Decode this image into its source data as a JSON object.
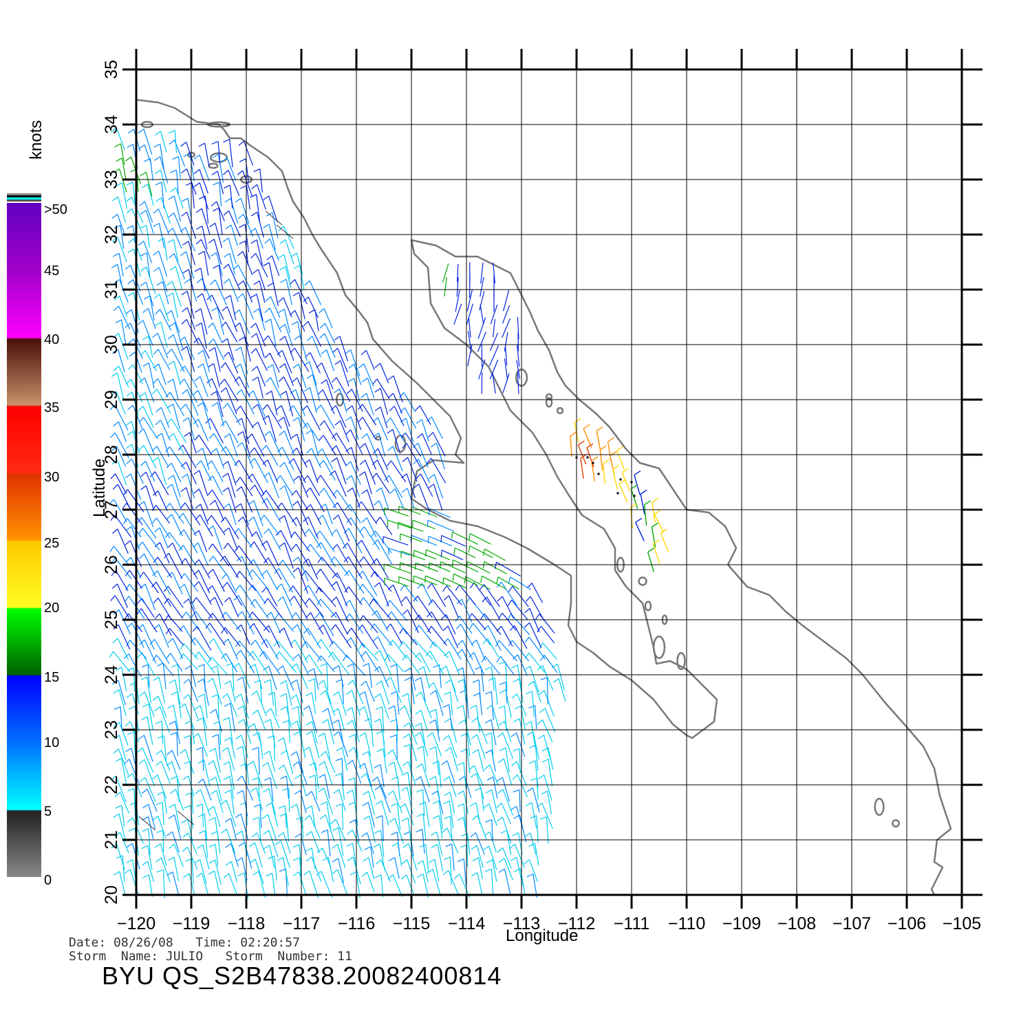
{
  "colorbar": {
    "title": "knots",
    "labels": [
      ">50",
      "45",
      "40",
      "35",
      "30",
      "25",
      "20",
      "15",
      "10",
      "5",
      "0"
    ],
    "colors": [
      "#6a00c8",
      "#b000c8",
      "#ff00ff",
      "#5a1e14",
      "#c88c64",
      "#ff1400",
      "#e03c00",
      "#ff8c00",
      "#ffd700",
      "#ffff00",
      "#00ff00",
      "#006400",
      "#0000ff",
      "#0078ff",
      "#00ffff",
      "#323232",
      "#808080"
    ]
  },
  "axes": {
    "xlabel": "Longitude",
    "ylabel": "Latitude",
    "lon_ticks": [
      "−120",
      "−119",
      "−118",
      "−117",
      "−116",
      "−115",
      "−114",
      "−113",
      "−112",
      "−111",
      "−110",
      "−109",
      "−108",
      "−107",
      "−106",
      "−105"
    ],
    "lat_ticks": [
      "20",
      "21",
      "22",
      "23",
      "24",
      "25",
      "26",
      "27",
      "28",
      "29",
      "30",
      "31",
      "32",
      "33",
      "34",
      "35"
    ],
    "lon_range": [
      -120,
      -105
    ],
    "lat_range": [
      20,
      35
    ],
    "grid": true
  },
  "info": {
    "date_line": "Date: 08/26/08   Time: 02:20:57",
    "storm_line": "Storm  Name: JULIO   Storm  Number: 11",
    "product_id": "BYU  QS_S2B47838.20082400814"
  },
  "coast": {
    "color": "#777777"
  },
  "wind_colors": {
    "calm": "#333333",
    "cyan": "#00ccee",
    "light_blue": "#0088ff",
    "blue": "#0022dd",
    "green": "#00aa00",
    "yellow": "#ffd700",
    "orange": "#ff8c00",
    "red": "#e03c00"
  }
}
